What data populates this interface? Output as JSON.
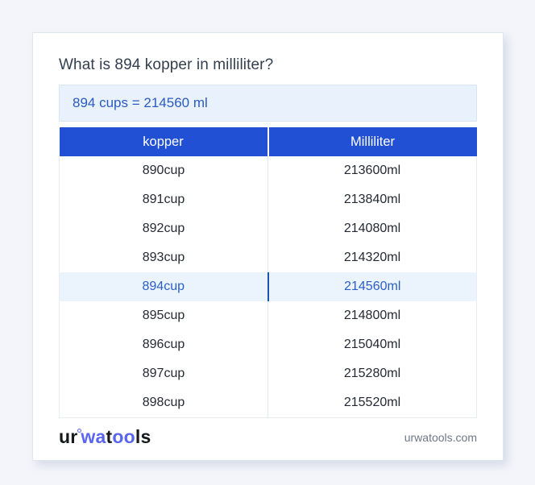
{
  "page": {
    "title": "What is 894 kopper in milliliter?",
    "answer": "894 cups = 214560 ml"
  },
  "table": {
    "headers": [
      "kopper",
      "Milliliter"
    ],
    "rows": [
      {
        "kopper": "890cup",
        "milliliter": "213600ml",
        "highlight": false
      },
      {
        "kopper": "891cup",
        "milliliter": "213840ml",
        "highlight": false
      },
      {
        "kopper": "892cup",
        "milliliter": "214080ml",
        "highlight": false
      },
      {
        "kopper": "893cup",
        "milliliter": "214320ml",
        "highlight": false
      },
      {
        "kopper": "894cup",
        "milliliter": "214560ml",
        "highlight": true
      },
      {
        "kopper": "895cup",
        "milliliter": "214800ml",
        "highlight": false
      },
      {
        "kopper": "896cup",
        "milliliter": "215040ml",
        "highlight": false
      },
      {
        "kopper": "897cup",
        "milliliter": "215280ml",
        "highlight": false
      },
      {
        "kopper": "898cup",
        "milliliter": "215520ml",
        "highlight": false
      }
    ]
  },
  "footer": {
    "logo": {
      "seg1": "ur",
      "seg2": "wa",
      "seg3": "t",
      "seg4": "oo",
      "seg5": "ls"
    },
    "domain": "urwatools.com"
  },
  "colors": {
    "header_blue": "#2150d4",
    "answer_bg": "#e9f1fc",
    "answer_text": "#2b5bbe",
    "highlight_bg": "#ebf3fd",
    "highlight_text": "#2b5ec6",
    "logo_blue": "#5a66f0",
    "page_bg": "#f3f5fa"
  }
}
